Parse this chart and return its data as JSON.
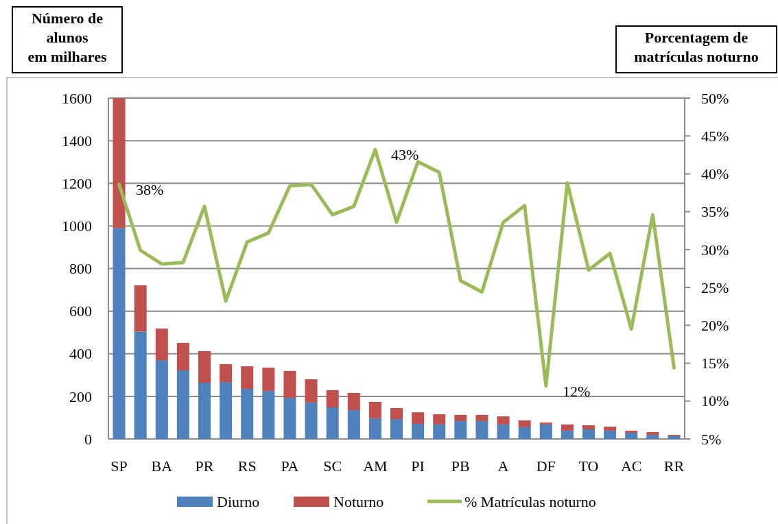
{
  "chart_data": {
    "type": "bar",
    "stacked": true,
    "categories": [
      "SP",
      null,
      "BA",
      null,
      "PR",
      null,
      "RS",
      null,
      "PA",
      null,
      "SC",
      null,
      "AM",
      null,
      "PI",
      null,
      "PB",
      null,
      "A",
      null,
      "DF",
      null,
      "TO",
      null,
      "AC",
      null,
      "RR"
    ],
    "series": [
      {
        "name": "Diurno",
        "color": "#4f81bd",
        "values": [
          990,
          504,
          370,
          322,
          264,
          267,
          235,
          225,
          193,
          171,
          148,
          135,
          97,
          93,
          71,
          68,
          84,
          84,
          68,
          55,
          68,
          39,
          45,
          39,
          29,
          19,
          13
        ]
      },
      {
        "name": "Noturno",
        "color": "#c0504d",
        "values": [
          610,
          217,
          148,
          129,
          148,
          84,
          106,
          110,
          126,
          109,
          81,
          81,
          77,
          52,
          54,
          48,
          29,
          29,
          38,
          32,
          9,
          29,
          19,
          19,
          10,
          13,
          6
        ]
      },
      {
        "name": "% Matrículas noturno",
        "type": "line",
        "axis": "y2",
        "color": "#9bbb59",
        "values": [
          38.6,
          29.9,
          28.1,
          28.3,
          35.7,
          23.2,
          31.0,
          32.2,
          38.4,
          38.6,
          34.6,
          35.7,
          43.2,
          33.6,
          41.6,
          40.2,
          25.9,
          24.4,
          33.6,
          35.8,
          12.0,
          38.8,
          27.3,
          29.5,
          19.5,
          34.6,
          14.4
        ]
      }
    ],
    "ylabel": "Número de\nalunos\nem milhares",
    "y2label": "Porcentagem de\nmatrículas noturno",
    "ylim": [
      0,
      1600
    ],
    "yticks": [
      0,
      200,
      400,
      600,
      800,
      1000,
      1200,
      1400,
      1600
    ],
    "y2lim": [
      5,
      50
    ],
    "y2ticks": [
      {
        "value": 5,
        "label": "5%"
      },
      {
        "value": 10,
        "label": "10%"
      },
      {
        "value": 15,
        "label": "15%"
      },
      {
        "value": 20,
        "label": "20%"
      },
      {
        "value": 25,
        "label": "25%"
      },
      {
        "value": 30,
        "label": "30%"
      },
      {
        "value": 35,
        "label": "35%"
      },
      {
        "value": 40,
        "label": "40%"
      },
      {
        "value": 45,
        "label": "45%"
      },
      {
        "value": 50,
        "label": "50%"
      }
    ],
    "annotations": [
      "38%",
      "43%",
      "12%"
    ],
    "grid": "y",
    "legend": "bottom",
    "marker": "none",
    "line_style": "solid"
  }
}
